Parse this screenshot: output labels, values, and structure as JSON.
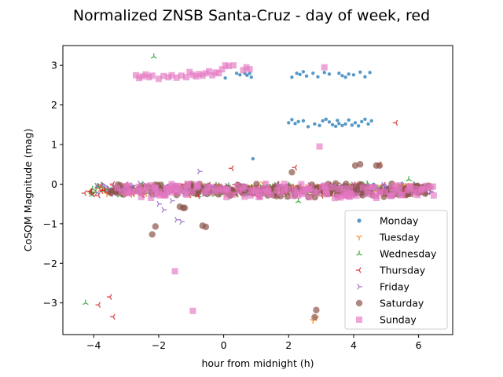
{
  "chart_data": {
    "type": "scatter",
    "title": "Normalized ZNSB Santa-Cruz - day of week, red",
    "xlabel": "hour from midnight (h)",
    "ylabel": "CoSQM Magnitude (mag)",
    "xlim": [
      -4.95,
      7.05
    ],
    "ylim": [
      -3.8,
      3.5
    ],
    "xticks": [
      -4,
      -2,
      0,
      2,
      4,
      6
    ],
    "yticks": [
      -3,
      -2,
      -1,
      0,
      1,
      2,
      3
    ],
    "xtick_labels": [
      "−4",
      "−2",
      "0",
      "2",
      "4",
      "6"
    ],
    "ytick_labels": [
      "−3",
      "−2",
      "−1",
      "0",
      "1",
      "2",
      "3"
    ],
    "grid": false,
    "legend_position": "lower-right",
    "series": [
      {
        "name": "Monday",
        "marker": "circle-small",
        "color": "#1f77b4",
        "band": {
          "x": [
            -3.4,
            6.3
          ],
          "y": [
            -0.13,
            0.13
          ]
        },
        "points": [
          [
            0.05,
            2.68
          ],
          [
            0.4,
            2.8
          ],
          [
            0.5,
            2.76
          ],
          [
            0.65,
            2.8
          ],
          [
            0.72,
            2.75
          ],
          [
            0.8,
            2.8
          ],
          [
            0.85,
            2.7
          ],
          [
            2.1,
            2.7
          ],
          [
            2.25,
            2.8
          ],
          [
            2.35,
            2.77
          ],
          [
            2.45,
            2.84
          ],
          [
            2.55,
            2.73
          ],
          [
            2.75,
            2.8
          ],
          [
            2.9,
            2.71
          ],
          [
            3.1,
            2.82
          ],
          [
            3.25,
            2.78
          ],
          [
            3.55,
            2.8
          ],
          [
            3.65,
            2.74
          ],
          [
            3.75,
            2.7
          ],
          [
            3.85,
            2.78
          ],
          [
            4.0,
            2.76
          ],
          [
            4.2,
            2.83
          ],
          [
            4.35,
            2.71
          ],
          [
            4.5,
            2.82
          ],
          [
            2.0,
            1.55
          ],
          [
            2.1,
            1.63
          ],
          [
            2.2,
            1.53
          ],
          [
            2.3,
            1.58
          ],
          [
            2.45,
            1.6
          ],
          [
            2.6,
            1.45
          ],
          [
            2.8,
            1.52
          ],
          [
            2.95,
            1.48
          ],
          [
            3.05,
            1.6
          ],
          [
            3.15,
            1.64
          ],
          [
            3.25,
            1.57
          ],
          [
            3.35,
            1.5
          ],
          [
            3.45,
            1.46
          ],
          [
            3.5,
            1.61
          ],
          [
            3.55,
            1.53
          ],
          [
            3.65,
            1.48
          ],
          [
            3.75,
            1.52
          ],
          [
            3.85,
            1.62
          ],
          [
            3.95,
            1.49
          ],
          [
            4.05,
            1.55
          ],
          [
            4.15,
            1.47
          ],
          [
            4.25,
            1.58
          ],
          [
            4.35,
            1.64
          ],
          [
            4.45,
            1.52
          ],
          [
            4.55,
            1.6
          ],
          [
            0.9,
            0.64
          ]
        ]
      },
      {
        "name": "Tuesday",
        "marker": "tri-down",
        "color": "#ff7f0e",
        "band": {
          "x": [
            -3.6,
            6.4
          ],
          "y": [
            -0.12,
            0.12
          ]
        },
        "points": [
          [
            0.05,
            -0.27
          ],
          [
            0.55,
            -0.2
          ],
          [
            6.2,
            -0.1
          ],
          [
            2.75,
            -3.45
          ],
          [
            2.85,
            -3.38
          ]
        ]
      },
      {
        "name": "Wednesday",
        "marker": "tri-up",
        "color": "#2ca02c",
        "band": {
          "x": [
            -4.1,
            6.2
          ],
          "y": [
            -0.14,
            0.14
          ]
        },
        "points": [
          [
            -2.15,
            3.22
          ],
          [
            -4.25,
            -3.0
          ],
          [
            2.3,
            -0.43
          ],
          [
            5.7,
            0.12
          ]
        ]
      },
      {
        "name": "Thursday",
        "marker": "tri-left",
        "color": "#d62728",
        "band": {
          "x": [
            -4.3,
            6.2
          ],
          "y": [
            -0.15,
            0.15
          ]
        },
        "points": [
          [
            -3.5,
            -2.85
          ],
          [
            -3.85,
            -3.05
          ],
          [
            -3.4,
            -3.35
          ],
          [
            5.3,
            1.55
          ],
          [
            2.2,
            0.42
          ],
          [
            0.25,
            0.4
          ],
          [
            4.8,
            0.5
          ]
        ]
      },
      {
        "name": "Friday",
        "marker": "tri-right",
        "color": "#9467bd",
        "band": {
          "x": [
            -4.0,
            6.4
          ],
          "y": [
            -0.13,
            0.13
          ]
        },
        "points": [
          [
            -2.0,
            -0.5
          ],
          [
            -1.85,
            -0.65
          ],
          [
            -1.45,
            -0.9
          ],
          [
            -1.3,
            -0.95
          ],
          [
            -0.75,
            0.32
          ],
          [
            -1.6,
            -0.42
          ]
        ]
      },
      {
        "name": "Saturday",
        "marker": "circle-large",
        "color": "#8c564b",
        "band": {
          "x": [
            -3.5,
            6.4
          ],
          "y": [
            -0.16,
            0.16
          ]
        },
        "points": [
          [
            -1.35,
            -0.57
          ],
          [
            -1.25,
            -0.6
          ],
          [
            -1.2,
            -0.6
          ],
          [
            -2.1,
            -1.07
          ],
          [
            -2.2,
            -1.27
          ],
          [
            -0.65,
            -1.05
          ],
          [
            -0.55,
            -1.08
          ],
          [
            -0.85,
            -0.23
          ],
          [
            2.85,
            -3.18
          ],
          [
            2.8,
            -3.36
          ],
          [
            4.05,
            0.47
          ],
          [
            4.2,
            0.5
          ],
          [
            4.7,
            0.47
          ],
          [
            4.8,
            0.47
          ],
          [
            2.1,
            0.3
          ]
        ]
      },
      {
        "name": "Sunday",
        "marker": "square",
        "color": "#e377c2",
        "band": {
          "x": [
            -3.3,
            6.5
          ],
          "y": [
            -0.17,
            0.17
          ]
        },
        "points": [
          [
            -2.7,
            2.75
          ],
          [
            -2.6,
            2.68
          ],
          [
            -2.5,
            2.72
          ],
          [
            -2.4,
            2.77
          ],
          [
            -2.3,
            2.7
          ],
          [
            -2.2,
            2.74
          ],
          [
            -2.0,
            2.66
          ],
          [
            -1.85,
            2.73
          ],
          [
            -1.7,
            2.7
          ],
          [
            -1.6,
            2.75
          ],
          [
            -1.45,
            2.69
          ],
          [
            -1.3,
            2.74
          ],
          [
            -1.15,
            2.7
          ],
          [
            -1.05,
            2.83
          ],
          [
            -0.95,
            2.76
          ],
          [
            -0.85,
            2.72
          ],
          [
            -0.75,
            2.78
          ],
          [
            -0.65,
            2.74
          ],
          [
            -0.55,
            2.8
          ],
          [
            -0.45,
            2.85
          ],
          [
            -0.35,
            2.75
          ],
          [
            -0.25,
            2.82
          ],
          [
            -0.15,
            2.8
          ],
          [
            -0.05,
            2.9
          ],
          [
            0.05,
            3.0
          ],
          [
            0.15,
            2.98
          ],
          [
            0.3,
            3.0
          ],
          [
            0.6,
            2.88
          ],
          [
            0.7,
            2.95
          ],
          [
            0.8,
            2.9
          ],
          [
            3.1,
            2.95
          ],
          [
            2.95,
            0.95
          ],
          [
            -1.5,
            -2.2
          ],
          [
            -0.95,
            -3.2
          ],
          [
            4.7,
            -0.35
          ]
        ]
      }
    ]
  }
}
